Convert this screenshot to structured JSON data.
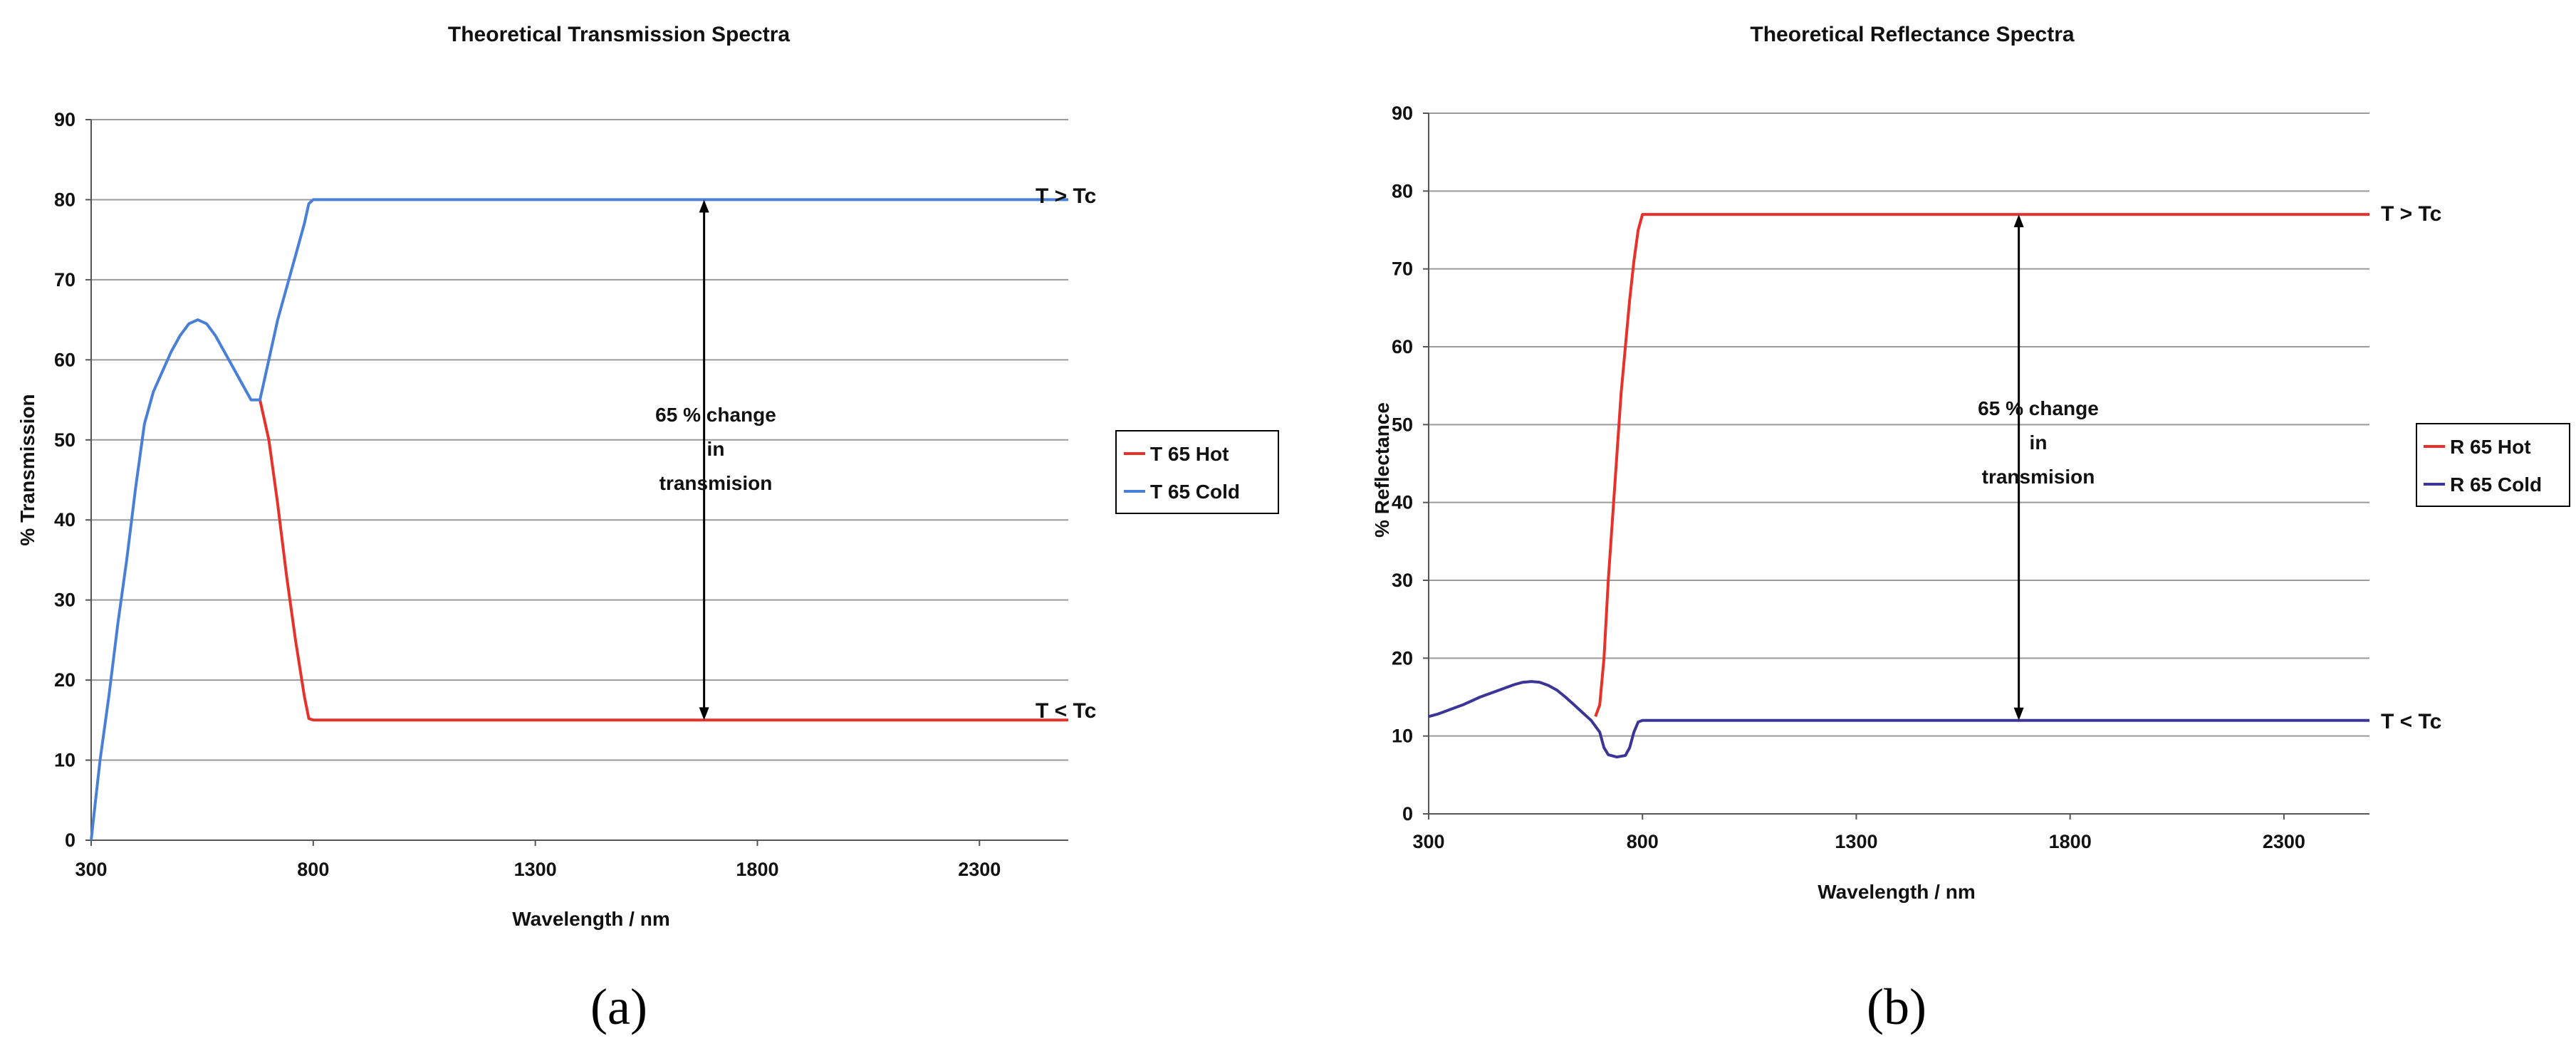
{
  "chart_data": [
    {
      "type": "line",
      "panel_label": "(a)",
      "title": "Theoretical Transmission Spectra",
      "xlabel": "Wavelength / nm",
      "ylabel": "% Transmission",
      "xlim": [
        300,
        2500
      ],
      "ylim": [
        0,
        90
      ],
      "xticks": [
        300,
        800,
        1300,
        1800,
        2300
      ],
      "yticks": [
        0,
        10,
        20,
        30,
        40,
        50,
        60,
        70,
        80,
        90
      ],
      "grid": "horizontal",
      "legend_position": "right",
      "series": [
        {
          "name": "T 65 Hot",
          "color": "#e8312a",
          "x": [
            680,
            700,
            720,
            740,
            760,
            780,
            790,
            800,
            1000,
            1500,
            2000,
            2500
          ],
          "y": [
            55,
            50,
            42,
            33,
            25,
            18,
            15.2,
            15,
            15,
            15,
            15,
            15
          ]
        },
        {
          "name": "T 65 Cold",
          "color": "#4a7fd8",
          "x": [
            300,
            310,
            320,
            340,
            360,
            380,
            400,
            420,
            440,
            460,
            480,
            500,
            520,
            540,
            560,
            580,
            600,
            620,
            640,
            660,
            680,
            700,
            720,
            740,
            760,
            780,
            790,
            800,
            1000,
            1500,
            2000,
            2500
          ],
          "y": [
            0,
            5,
            10,
            18,
            27,
            35,
            44,
            52,
            56,
            58.5,
            61,
            63,
            64.5,
            65,
            64.5,
            63,
            61,
            59,
            57,
            55,
            55,
            60,
            65,
            69,
            73,
            77,
            79.5,
            80,
            80,
            80,
            80,
            80
          ]
        }
      ],
      "annotations": {
        "arrow": {
          "x": 1680,
          "y_from": 15,
          "y_to": 80
        },
        "change_text": [
          "65 % change",
          "in",
          "transmision"
        ],
        "upper_label": "T > Tc",
        "lower_label": "T < Tc"
      }
    },
    {
      "type": "line",
      "panel_label": "(b)",
      "title": "Theoretical Reflectance Spectra",
      "xlabel": "Wavelength / nm",
      "ylabel": "% Reflectance",
      "xlim": [
        300,
        2500
      ],
      "ylim": [
        0,
        90
      ],
      "xticks": [
        300,
        800,
        1300,
        1800,
        2300
      ],
      "yticks": [
        0,
        10,
        20,
        30,
        40,
        50,
        60,
        70,
        80,
        90
      ],
      "grid": "horizontal",
      "legend_position": "right",
      "series": [
        {
          "name": "R 65 Hot",
          "color": "#e8312a",
          "x": [
            690,
            700,
            710,
            720,
            730,
            740,
            750,
            760,
            770,
            780,
            790,
            800,
            1000,
            1500,
            2000,
            2500
          ],
          "y": [
            12.5,
            14,
            20,
            30,
            38,
            46,
            54,
            60,
            66,
            71,
            75,
            77,
            77,
            77,
            77,
            77
          ]
        },
        {
          "name": "R 65 Cold",
          "color": "#3a3596",
          "x": [
            300,
            320,
            340,
            360,
            380,
            400,
            420,
            440,
            460,
            480,
            500,
            520,
            540,
            560,
            580,
            600,
            620,
            640,
            660,
            680,
            700,
            710,
            720,
            740,
            760,
            770,
            780,
            790,
            800,
            1000,
            1500,
            2000,
            2500
          ],
          "y": [
            12.5,
            12.8,
            13.2,
            13.6,
            14,
            14.5,
            15,
            15.4,
            15.8,
            16.2,
            16.6,
            16.9,
            17,
            16.9,
            16.5,
            15.9,
            15,
            14,
            13,
            12,
            10.5,
            8.5,
            7.6,
            7.3,
            7.5,
            8.5,
            10.5,
            11.8,
            12,
            12,
            12,
            12,
            12
          ]
        }
      ],
      "annotations": {
        "arrow": {
          "x": 1680,
          "y_from": 12,
          "y_to": 77
        },
        "change_text": [
          "65 % change",
          "in",
          "transmision"
        ],
        "upper_label": "T > Tc",
        "lower_label": "T < Tc"
      }
    }
  ]
}
